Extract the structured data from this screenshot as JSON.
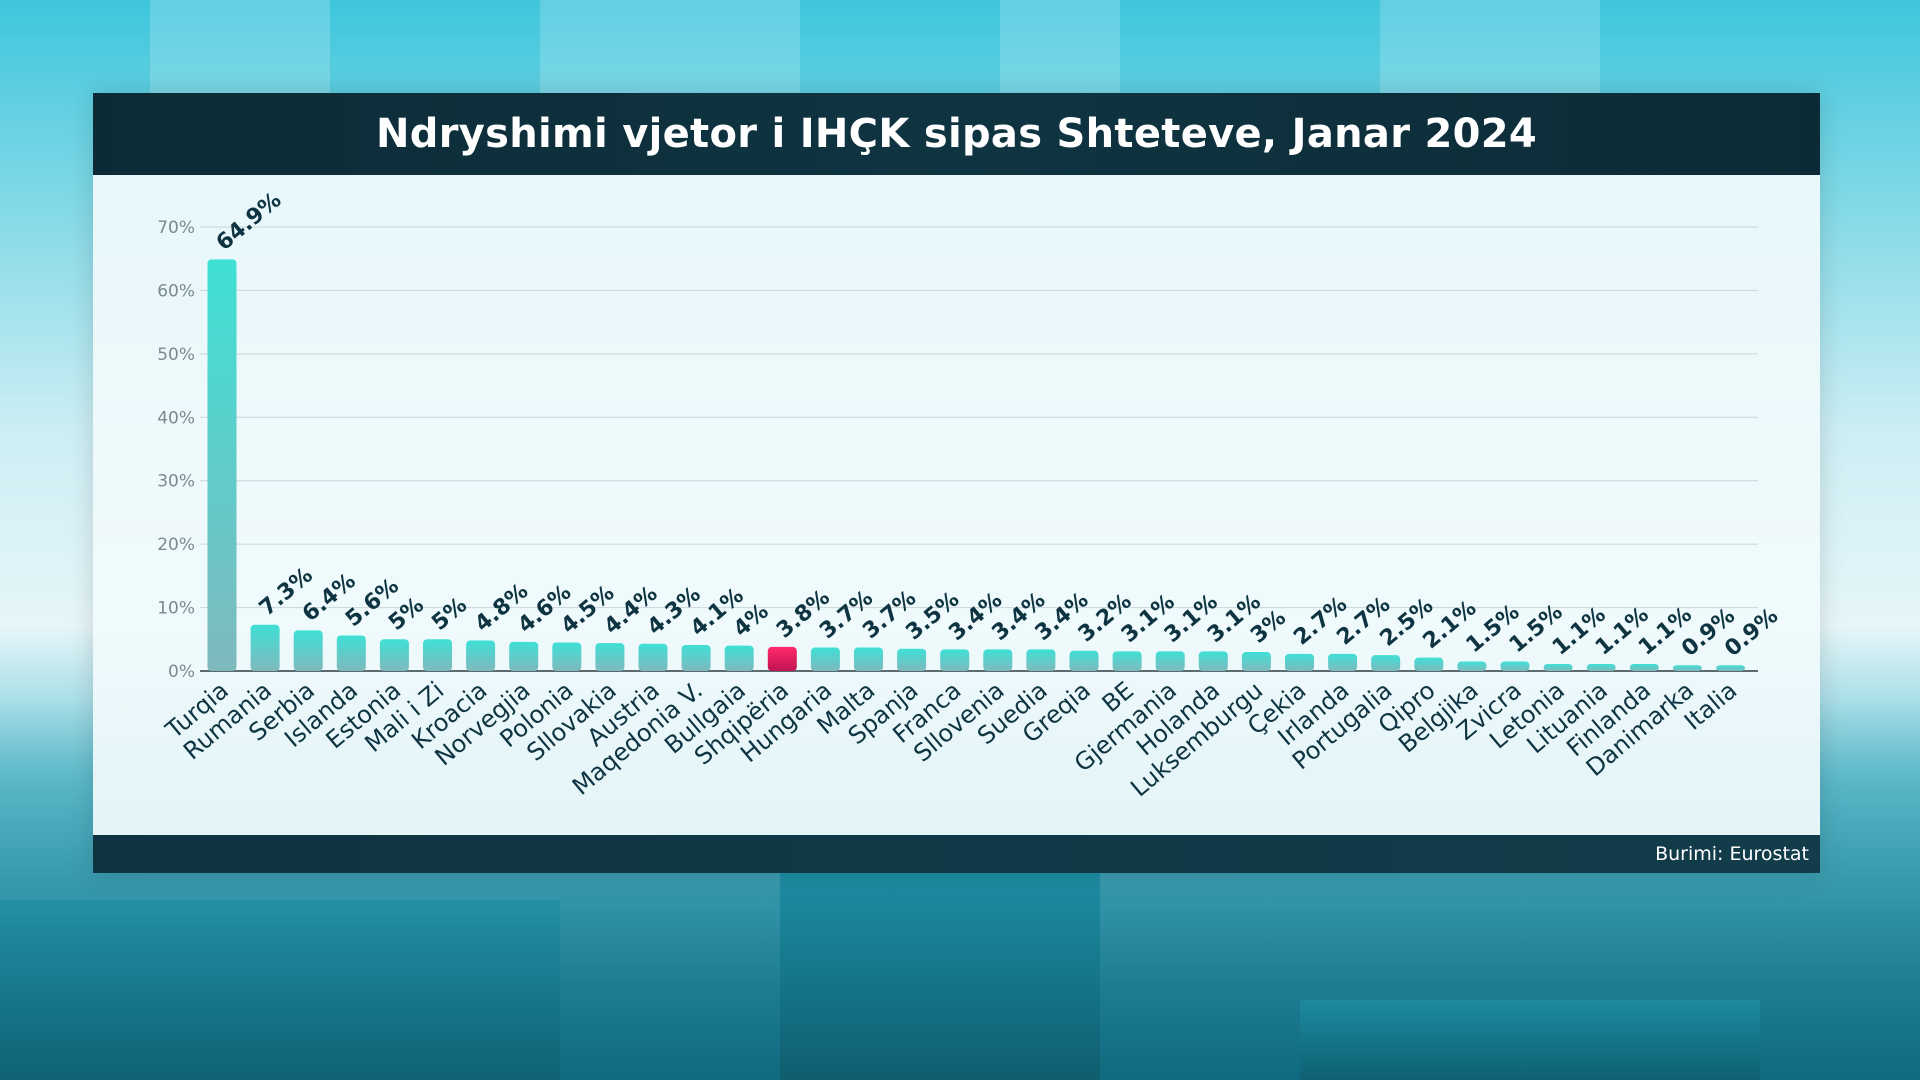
{
  "title": "Ndryshimi vjetor i IHÇK sipas Shteteve, Janar 2024",
  "source": "Burimi: Eurostat",
  "colors": {
    "bar": "#3fd6cf",
    "highlight": "#e0195a",
    "label": "#0f3441",
    "grid": "#c9d5d9",
    "axis_text": "#7a8a90"
  },
  "chart_data": {
    "type": "bar",
    "title": "Ndryshimi vjetor i IHÇK sipas Shteteve, Janar 2024",
    "xlabel": "",
    "ylabel": "",
    "ylim": [
      0,
      70
    ],
    "yticks": [
      "0%",
      "10%",
      "20%",
      "30%",
      "40%",
      "50%",
      "60%",
      "70%"
    ],
    "grid": true,
    "categories": [
      "Turqia",
      "Rumania",
      "Serbia",
      "Islanda",
      "Estonia",
      "Mali i Zi",
      "Kroacia",
      "Norvegjia",
      "Polonia",
      "Sllovakia",
      "Austria",
      "Maqedonia V.",
      "Bullgaia",
      "Shqipëria",
      "Hungaria",
      "Malta",
      "Spanja",
      "Franca",
      "Sllovenia",
      "Suedia",
      "Greqia",
      "BE",
      "Gjermania",
      "Holanda",
      "Luksemburgu",
      "Çekia",
      "Irlanda",
      "Portugalia",
      "Qipro",
      "Belgjika",
      "Zvicra",
      "Letonia",
      "Lituania",
      "Finlanda",
      "Danimarka",
      "Italia"
    ],
    "values": [
      64.9,
      7.3,
      6.4,
      5.6,
      5,
      5,
      4.8,
      4.6,
      4.5,
      4.4,
      4.3,
      4.1,
      4,
      3.8,
      3.7,
      3.7,
      3.5,
      3.4,
      3.4,
      3.4,
      3.2,
      3.1,
      3.1,
      3.1,
      3,
      2.7,
      2.7,
      2.5,
      2.1,
      1.5,
      1.5,
      1.1,
      1.1,
      1.1,
      0.9,
      0.9
    ],
    "data_labels": [
      "64.9%",
      "7.3%",
      "6.4%",
      "5.6%",
      "5%",
      "5%",
      "4.8%",
      "4.6%",
      "4.5%",
      "4.4%",
      "4.3%",
      "4.1%",
      "4%",
      "3.8%",
      "3.7%",
      "3.7%",
      "3.5%",
      "3.4%",
      "3.4%",
      "3.4%",
      "3.2%",
      "3.1%",
      "3.1%",
      "3.1%",
      "3%",
      "2.7%",
      "2.7%",
      "2.5%",
      "2.1%",
      "1.5%",
      "1.5%",
      "1.1%",
      "1.1%",
      "1.1%",
      "0.9%",
      "0.9%"
    ],
    "highlight_category": "Shqipëria"
  }
}
